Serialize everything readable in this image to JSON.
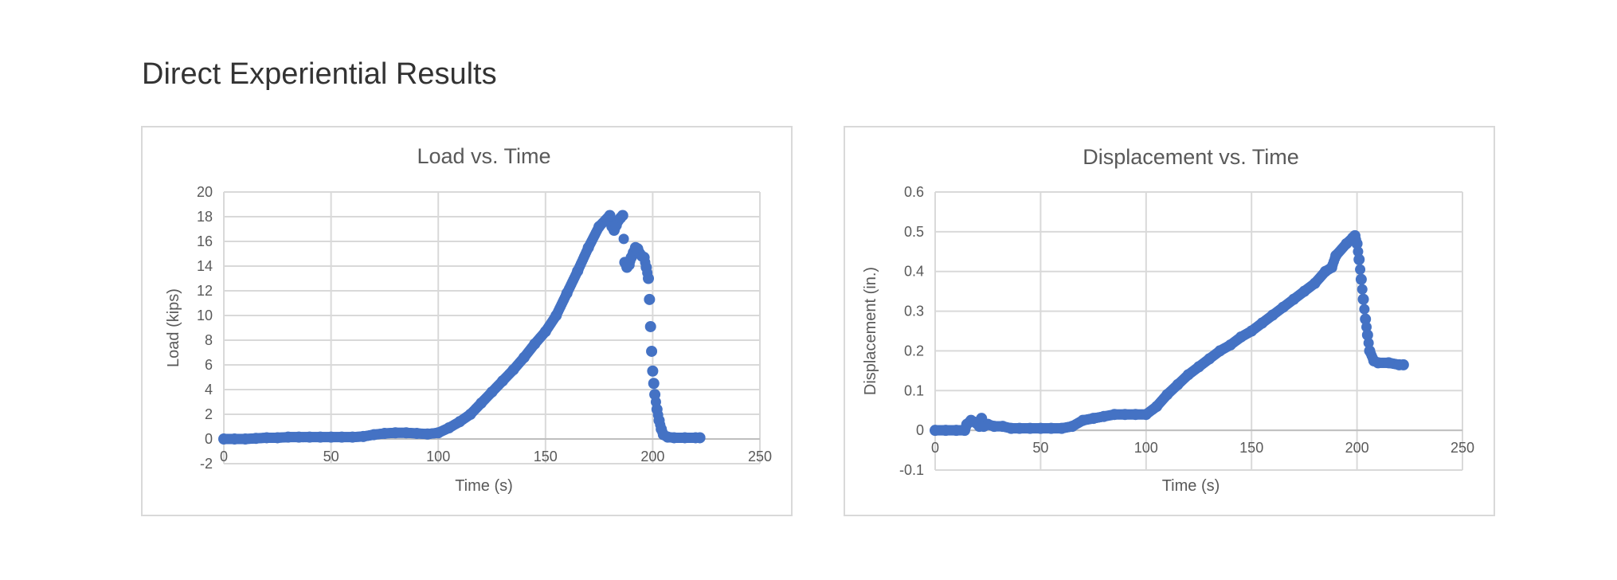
{
  "page": {
    "title": "Direct Experiential Results"
  },
  "colors": {
    "series": "#4472c4",
    "grid": "#d9d9d9",
    "text": "#595959",
    "title": "#333333"
  },
  "chart_data": [
    {
      "type": "scatter",
      "title": "Load vs. Time",
      "xlabel": "Time (s)",
      "ylabel": "Load (kips)",
      "xlim": [
        0,
        250
      ],
      "ylim": [
        -2,
        20
      ],
      "x_ticks": [
        0,
        50,
        100,
        150,
        200,
        250
      ],
      "y_ticks": [
        -2,
        0,
        2,
        4,
        6,
        8,
        10,
        12,
        14,
        16,
        18,
        20
      ],
      "grid": true,
      "legend": "none",
      "series": [
        {
          "x": [
            0,
            5,
            10,
            15,
            20,
            25,
            30,
            35,
            40,
            45,
            50,
            55,
            60,
            65,
            70,
            75,
            80,
            85,
            90,
            95,
            100,
            105,
            110,
            115,
            120,
            125,
            130,
            135,
            140,
            145,
            150,
            155,
            160,
            165,
            170,
            175,
            180,
            181,
            182,
            183,
            184,
            185,
            186,
            187,
            188,
            189,
            190,
            191,
            192,
            193,
            194,
            195,
            196,
            197,
            198,
            198.5,
            199,
            199.5,
            200,
            200.5,
            201,
            202,
            203,
            204,
            205,
            207,
            210,
            215,
            220,
            222
          ],
          "y": [
            0,
            0,
            0,
            0.05,
            0.1,
            0.1,
            0.15,
            0.15,
            0.15,
            0.15,
            0.15,
            0.15,
            0.15,
            0.2,
            0.35,
            0.45,
            0.5,
            0.5,
            0.45,
            0.4,
            0.5,
            0.9,
            1.4,
            2.0,
            2.9,
            3.8,
            4.7,
            5.6,
            6.6,
            7.7,
            8.7,
            10.0,
            11.8,
            13.6,
            15.5,
            17.2,
            18.1,
            17.2,
            16.9,
            17.3,
            17.7,
            17.9,
            18.1,
            14.3,
            13.9,
            14.1,
            14.7,
            15.1,
            15.5,
            15.4,
            15.0,
            14.8,
            14.7,
            13.9,
            13.0,
            11.3,
            9.1,
            7.1,
            5.5,
            4.5,
            3.6,
            2.4,
            1.5,
            0.8,
            0.35,
            0.15,
            0.1,
            0.1,
            0.1,
            0.1
          ]
        }
      ]
    },
    {
      "type": "scatter",
      "title": "Displacement vs. Time",
      "xlabel": "Time (s)",
      "ylabel": "Displacement  (in.)",
      "xlim": [
        0,
        250
      ],
      "ylim": [
        -0.1,
        0.6
      ],
      "x_ticks": [
        0,
        50,
        100,
        150,
        200,
        250
      ],
      "y_ticks": [
        -0.1,
        0,
        0.1,
        0.2,
        0.3,
        0.4,
        0.5,
        0.6
      ],
      "grid": true,
      "legend": "none",
      "series": [
        {
          "x": [
            0,
            5,
            10,
            14,
            15,
            17,
            19,
            21,
            22,
            23,
            25,
            28,
            32,
            36,
            40,
            45,
            50,
            55,
            60,
            65,
            70,
            75,
            80,
            85,
            90,
            95,
            100,
            105,
            110,
            115,
            120,
            125,
            130,
            135,
            140,
            145,
            150,
            155,
            160,
            165,
            170,
            175,
            180,
            185,
            188,
            190,
            195,
            198,
            199,
            200,
            201,
            202,
            203,
            204,
            205,
            206,
            208,
            210,
            215,
            220,
            222
          ],
          "y": [
            0,
            0,
            0,
            0,
            0.015,
            0.025,
            0.02,
            0.01,
            0.03,
            0.01,
            0.015,
            0.01,
            0.01,
            0.005,
            0.005,
            0.005,
            0.005,
            0.005,
            0.005,
            0.01,
            0.025,
            0.03,
            0.035,
            0.04,
            0.04,
            0.04,
            0.04,
            0.06,
            0.09,
            0.115,
            0.14,
            0.16,
            0.18,
            0.2,
            0.215,
            0.235,
            0.25,
            0.27,
            0.29,
            0.31,
            0.33,
            0.35,
            0.37,
            0.4,
            0.41,
            0.44,
            0.47,
            0.485,
            0.49,
            0.47,
            0.43,
            0.38,
            0.33,
            0.28,
            0.24,
            0.2,
            0.175,
            0.17,
            0.17,
            0.165,
            0.165
          ]
        }
      ]
    }
  ]
}
